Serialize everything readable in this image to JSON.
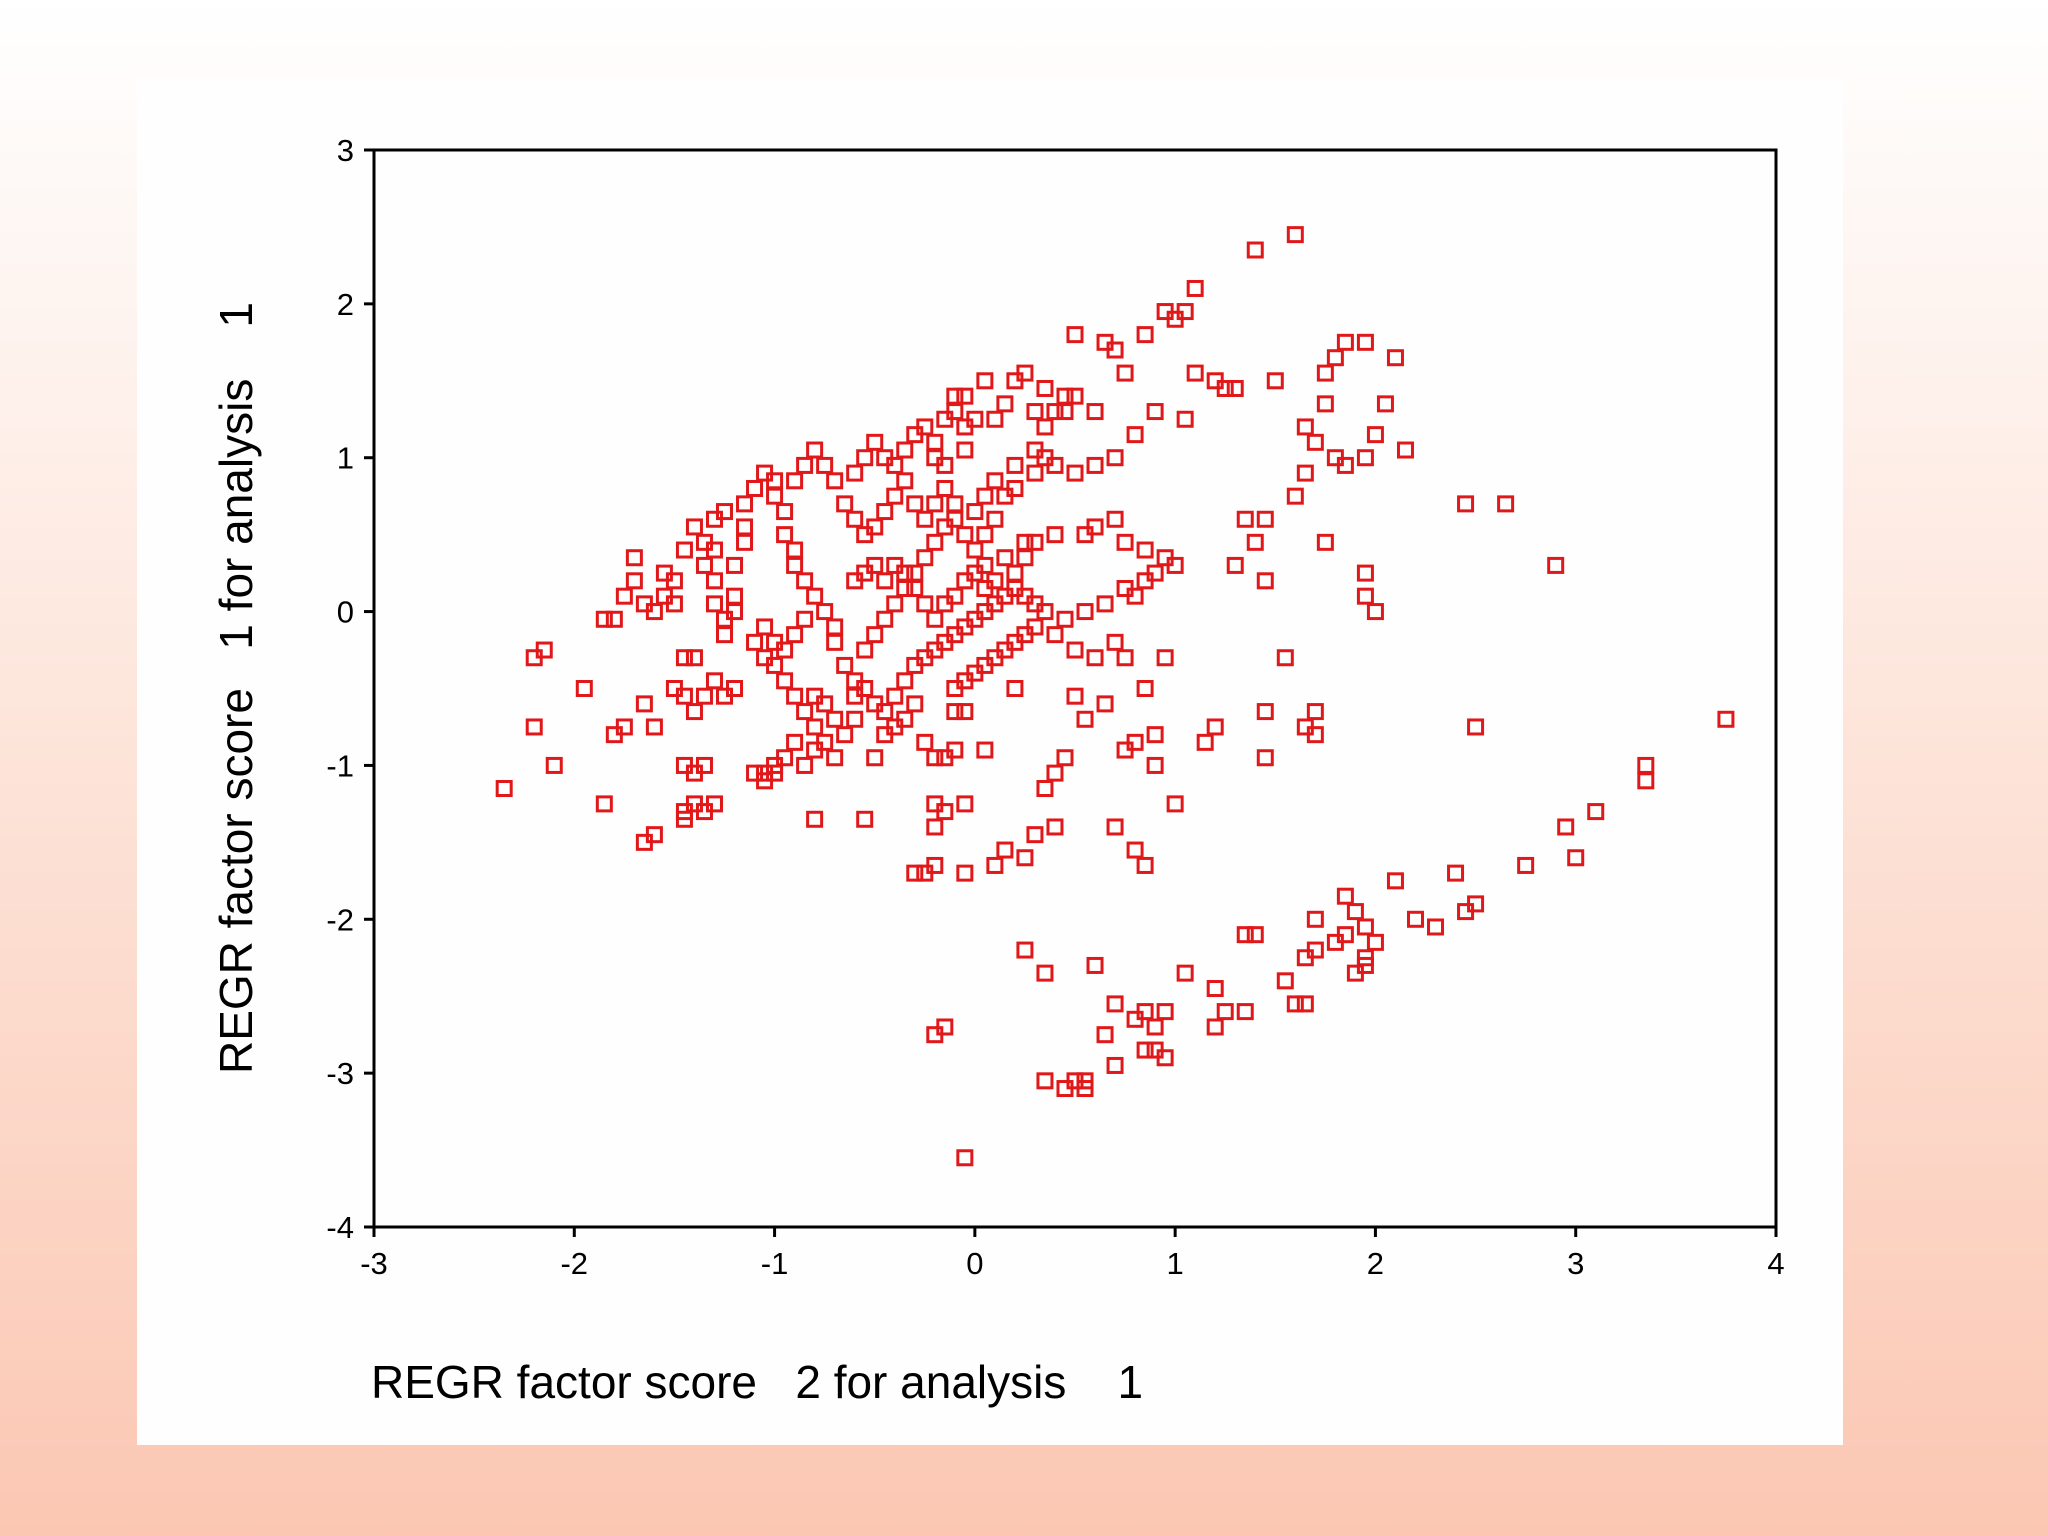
{
  "chart_data": {
    "type": "scatter",
    "xlabel": "REGR factor score   2 for analysis    1",
    "ylabel": "REGR factor score   1 for analysis    1",
    "xlim": [
      -3,
      4
    ],
    "ylim": [
      -4,
      3
    ],
    "xticks": [
      "-3",
      "-2",
      "-1",
      "0",
      "1",
      "2",
      "3",
      "4"
    ],
    "yticks": [
      "3",
      "2",
      "1",
      "0",
      "-1",
      "-2",
      "-3",
      "-4"
    ],
    "marker": "hollow-square",
    "color": "#e0181a",
    "grid": false,
    "points": [
      [
        1.6,
        2.45
      ],
      [
        1.4,
        2.35
      ],
      [
        1.1,
        2.1
      ],
      [
        0.95,
        1.95
      ],
      [
        1.05,
        1.95
      ],
      [
        1.0,
        1.9
      ],
      [
        0.5,
        1.8
      ],
      [
        0.85,
        1.8
      ],
      [
        0.65,
        1.75
      ],
      [
        0.7,
        1.7
      ],
      [
        0.75,
        1.55
      ],
      [
        1.85,
        1.75
      ],
      [
        1.8,
        1.65
      ],
      [
        1.95,
        1.75
      ],
      [
        2.1,
        1.65
      ],
      [
        1.75,
        1.55
      ],
      [
        1.5,
        1.5
      ],
      [
        1.25,
        1.45
      ],
      [
        1.3,
        1.45
      ],
      [
        1.2,
        1.5
      ],
      [
        1.1,
        1.55
      ],
      [
        1.75,
        1.35
      ],
      [
        1.65,
        1.2
      ],
      [
        2.05,
        1.35
      ],
      [
        2.0,
        1.15
      ],
      [
        2.15,
        1.05
      ],
      [
        1.95,
        1.0
      ],
      [
        1.85,
        0.95
      ],
      [
        1.8,
        1.0
      ],
      [
        1.7,
        1.1
      ],
      [
        1.65,
        0.9
      ],
      [
        1.6,
        0.75
      ],
      [
        2.45,
        0.7
      ],
      [
        2.65,
        0.7
      ],
      [
        2.9,
        0.3
      ],
      [
        1.75,
        0.45
      ],
      [
        1.95,
        0.25
      ],
      [
        1.95,
        0.1
      ],
      [
        2.0,
        0.0
      ],
      [
        1.45,
        0.6
      ],
      [
        1.35,
        0.6
      ],
      [
        1.4,
        0.45
      ],
      [
        1.3,
        0.3
      ],
      [
        1.45,
        0.2
      ],
      [
        0.05,
        1.5
      ],
      [
        0.25,
        1.55
      ],
      [
        0.35,
        1.45
      ],
      [
        0.45,
        1.4
      ],
      [
        0.5,
        1.4
      ],
      [
        -0.05,
        1.4
      ],
      [
        -0.1,
        1.4
      ],
      [
        0.2,
        1.5
      ],
      [
        0.15,
        1.35
      ],
      [
        0.45,
        1.3
      ],
      [
        0.6,
        1.3
      ],
      [
        0.9,
        1.3
      ],
      [
        1.05,
        1.25
      ],
      [
        0.8,
        1.15
      ],
      [
        0.7,
        1.0
      ],
      [
        0.6,
        0.95
      ],
      [
        0.5,
        0.9
      ],
      [
        0.4,
        0.95
      ],
      [
        0.35,
        1.0
      ],
      [
        0.3,
        0.9
      ],
      [
        0.2,
        0.8
      ],
      [
        0.15,
        0.75
      ],
      [
        0.1,
        0.6
      ],
      [
        0.05,
        0.5
      ],
      [
        0.25,
        0.45
      ],
      [
        0.4,
        0.5
      ],
      [
        0.55,
        0.5
      ],
      [
        0.6,
        0.55
      ],
      [
        0.7,
        0.6
      ],
      [
        0.75,
        0.45
      ],
      [
        0.85,
        0.4
      ],
      [
        0.95,
        0.35
      ],
      [
        1.0,
        0.3
      ],
      [
        0.9,
        0.25
      ],
      [
        0.85,
        0.2
      ],
      [
        0.75,
        0.15
      ],
      [
        0.8,
        0.1
      ],
      [
        0.65,
        0.05
      ],
      [
        0.55,
        0.0
      ],
      [
        0.45,
        -0.05
      ],
      [
        0.4,
        -0.15
      ],
      [
        0.5,
        -0.25
      ],
      [
        0.6,
        -0.3
      ],
      [
        0.7,
        -0.2
      ],
      [
        0.75,
        -0.3
      ],
      [
        0.95,
        -0.3
      ],
      [
        0.85,
        -0.5
      ],
      [
        0.65,
        -0.6
      ],
      [
        0.5,
        -0.55
      ],
      [
        0.55,
        -0.7
      ],
      [
        0.8,
        -0.85
      ],
      [
        0.9,
        -0.8
      ],
      [
        0.9,
        -1.0
      ],
      [
        1.0,
        -1.25
      ],
      [
        0.75,
        -0.9
      ],
      [
        0.7,
        -1.4
      ],
      [
        0.8,
        -1.55
      ],
      [
        0.85,
        -1.65
      ],
      [
        0.45,
        -0.95
      ],
      [
        0.4,
        -1.05
      ],
      [
        0.35,
        -1.15
      ],
      [
        0.4,
        -1.4
      ],
      [
        0.3,
        -1.45
      ],
      [
        0.25,
        -1.6
      ],
      [
        0.2,
        -0.5
      ],
      [
        0.05,
        -0.9
      ],
      [
        -0.05,
        -1.25
      ],
      [
        0.1,
        -1.65
      ],
      [
        0.15,
        -1.55
      ],
      [
        -0.05,
        -1.7
      ],
      [
        -0.2,
        -1.65
      ],
      [
        -0.25,
        -1.7
      ],
      [
        -0.3,
        -1.7
      ],
      [
        -0.2,
        -1.4
      ],
      [
        -0.15,
        -1.3
      ],
      [
        -0.2,
        -1.25
      ],
      [
        -0.15,
        -0.95
      ],
      [
        -0.1,
        -0.9
      ],
      [
        -0.05,
        -0.65
      ],
      [
        -0.1,
        -0.65
      ],
      [
        1.2,
        -0.75
      ],
      [
        1.15,
        -0.85
      ],
      [
        1.45,
        -0.65
      ],
      [
        1.45,
        -0.95
      ],
      [
        1.65,
        -0.75
      ],
      [
        1.7,
        -0.65
      ],
      [
        1.7,
        -0.8
      ],
      [
        1.55,
        -0.3
      ],
      [
        2.5,
        -0.75
      ],
      [
        3.75,
        -0.7
      ],
      [
        3.35,
        -1.0
      ],
      [
        3.35,
        -1.1
      ],
      [
        3.1,
        -1.3
      ],
      [
        2.95,
        -1.4
      ],
      [
        3.0,
        -1.6
      ],
      [
        2.75,
        -1.65
      ],
      [
        2.4,
        -1.7
      ],
      [
        2.5,
        -1.9
      ],
      [
        2.45,
        -1.95
      ],
      [
        2.3,
        -2.05
      ],
      [
        2.2,
        -2.0
      ],
      [
        2.1,
        -1.75
      ],
      [
        2.0,
        -2.15
      ],
      [
        1.95,
        -2.05
      ],
      [
        1.9,
        -1.95
      ],
      [
        1.85,
        -1.85
      ],
      [
        1.85,
        -2.1
      ],
      [
        1.8,
        -2.15
      ],
      [
        1.95,
        -2.25
      ],
      [
        1.9,
        -2.35
      ],
      [
        1.95,
        -2.3
      ],
      [
        1.7,
        -2.2
      ],
      [
        1.65,
        -2.25
      ],
      [
        1.7,
        -2.0
      ],
      [
        1.55,
        -2.4
      ],
      [
        1.65,
        -2.55
      ],
      [
        1.6,
        -2.55
      ],
      [
        1.4,
        -2.1
      ],
      [
        1.35,
        -2.1
      ],
      [
        1.35,
        -2.6
      ],
      [
        1.2,
        -2.45
      ],
      [
        1.25,
        -2.6
      ],
      [
        1.2,
        -2.7
      ],
      [
        1.05,
        -2.35
      ],
      [
        0.95,
        -2.6
      ],
      [
        0.9,
        -2.7
      ],
      [
        0.85,
        -2.6
      ],
      [
        0.8,
        -2.65
      ],
      [
        0.9,
        -2.85
      ],
      [
        0.95,
        -2.9
      ],
      [
        0.85,
        -2.85
      ],
      [
        0.7,
        -2.55
      ],
      [
        0.65,
        -2.75
      ],
      [
        0.7,
        -2.95
      ],
      [
        0.6,
        -2.3
      ],
      [
        0.35,
        -2.35
      ],
      [
        0.25,
        -2.2
      ],
      [
        0.35,
        -3.05
      ],
      [
        0.45,
        -3.1
      ],
      [
        0.5,
        -3.05
      ],
      [
        0.55,
        -3.05
      ],
      [
        0.55,
        -3.1
      ],
      [
        -0.05,
        -3.55
      ],
      [
        -0.2,
        -2.75
      ],
      [
        -0.15,
        -2.7
      ],
      [
        -2.35,
        -1.15
      ],
      [
        -2.2,
        -0.75
      ],
      [
        -2.1,
        -1.0
      ],
      [
        -2.2,
        -0.3
      ],
      [
        -2.15,
        -0.25
      ],
      [
        -1.95,
        -0.5
      ],
      [
        -1.85,
        -1.25
      ],
      [
        -1.75,
        -0.75
      ],
      [
        -1.8,
        -0.8
      ],
      [
        -1.65,
        -0.6
      ],
      [
        -1.6,
        -0.75
      ],
      [
        -1.65,
        -1.5
      ],
      [
        -1.6,
        -1.45
      ],
      [
        -1.45,
        -1.35
      ],
      [
        -1.45,
        -1.3
      ],
      [
        -1.4,
        -1.25
      ],
      [
        -1.35,
        -1.3
      ],
      [
        -1.3,
        -1.25
      ],
      [
        -1.35,
        -1.0
      ],
      [
        -1.4,
        -1.05
      ],
      [
        -1.45,
        -1.0
      ],
      [
        -1.5,
        -0.5
      ],
      [
        -1.45,
        -0.55
      ],
      [
        -1.4,
        -0.65
      ],
      [
        -1.35,
        -0.55
      ],
      [
        -1.3,
        -0.45
      ],
      [
        -1.25,
        -0.55
      ],
      [
        -1.2,
        -0.5
      ],
      [
        -1.1,
        -1.05
      ],
      [
        -1.05,
        -1.1
      ],
      [
        -1.05,
        -1.05
      ],
      [
        -1.0,
        -1.05
      ],
      [
        -1.0,
        -1.0
      ],
      [
        -0.95,
        -0.95
      ],
      [
        -0.9,
        -0.85
      ],
      [
        -0.85,
        -1.0
      ],
      [
        -0.8,
        -1.35
      ],
      [
        -0.8,
        -0.9
      ],
      [
        -0.75,
        -0.85
      ],
      [
        -0.7,
        -0.95
      ],
      [
        -0.6,
        -0.7
      ],
      [
        -0.55,
        -1.35
      ],
      [
        -0.5,
        -0.95
      ],
      [
        -0.45,
        -0.8
      ],
      [
        -0.4,
        -0.75
      ],
      [
        -0.35,
        -0.7
      ],
      [
        -0.3,
        -0.6
      ],
      [
        -0.25,
        -0.85
      ],
      [
        -0.2,
        -0.95
      ],
      [
        -1.85,
        -0.05
      ],
      [
        -1.8,
        -0.05
      ],
      [
        -1.75,
        0.1
      ],
      [
        -1.7,
        0.35
      ],
      [
        -1.7,
        0.2
      ],
      [
        -1.65,
        0.05
      ],
      [
        -1.6,
        0.0
      ],
      [
        -1.55,
        0.1
      ],
      [
        -1.55,
        0.25
      ],
      [
        -1.5,
        0.2
      ],
      [
        -1.5,
        0.05
      ],
      [
        -1.45,
        -0.3
      ],
      [
        -1.4,
        -0.3
      ],
      [
        -1.45,
        0.4
      ],
      [
        -1.4,
        0.55
      ],
      [
        -1.35,
        0.45
      ],
      [
        -1.3,
        0.4
      ],
      [
        -1.35,
        0.3
      ],
      [
        -1.3,
        0.2
      ],
      [
        -1.3,
        0.05
      ],
      [
        -1.25,
        -0.05
      ],
      [
        -1.25,
        -0.15
      ],
      [
        -1.2,
        0.0
      ],
      [
        -1.2,
        0.1
      ],
      [
        -1.2,
        0.3
      ],
      [
        -1.15,
        0.45
      ],
      [
        -1.15,
        0.55
      ],
      [
        -1.3,
        0.6
      ],
      [
        -1.25,
        0.65
      ],
      [
        -1.15,
        0.7
      ],
      [
        -1.1,
        0.8
      ],
      [
        -1.05,
        0.9
      ],
      [
        -1.0,
        0.85
      ],
      [
        -1.0,
        0.75
      ],
      [
        -0.95,
        0.65
      ],
      [
        -0.95,
        0.5
      ],
      [
        -0.9,
        0.4
      ],
      [
        -0.9,
        0.3
      ],
      [
        -0.85,
        0.2
      ],
      [
        -0.8,
        0.1
      ],
      [
        -0.75,
        0.0
      ],
      [
        -0.7,
        -0.1
      ],
      [
        -0.7,
        -0.2
      ],
      [
        -0.65,
        -0.35
      ],
      [
        -0.6,
        -0.45
      ],
      [
        -0.55,
        -0.5
      ],
      [
        -0.5,
        -0.6
      ],
      [
        -0.45,
        -0.65
      ],
      [
        -0.4,
        -0.55
      ],
      [
        -0.35,
        -0.45
      ],
      [
        -0.3,
        -0.35
      ],
      [
        -0.25,
        -0.3
      ],
      [
        -0.2,
        -0.25
      ],
      [
        -0.15,
        -0.2
      ],
      [
        -0.1,
        -0.15
      ],
      [
        -0.05,
        -0.1
      ],
      [
        0.0,
        -0.05
      ],
      [
        0.05,
        0.0
      ],
      [
        0.1,
        0.05
      ],
      [
        0.15,
        0.1
      ],
      [
        0.2,
        0.15
      ],
      [
        0.25,
        0.1
      ],
      [
        0.3,
        0.05
      ],
      [
        0.35,
        0.0
      ],
      [
        0.3,
        -0.1
      ],
      [
        0.25,
        -0.15
      ],
      [
        0.2,
        -0.2
      ],
      [
        0.15,
        -0.25
      ],
      [
        0.1,
        -0.3
      ],
      [
        0.05,
        -0.35
      ],
      [
        0.0,
        -0.4
      ],
      [
        -0.05,
        -0.45
      ],
      [
        -0.1,
        -0.5
      ],
      [
        -1.1,
        -0.2
      ],
      [
        -1.05,
        -0.3
      ],
      [
        -1.05,
        -0.1
      ],
      [
        -1.0,
        -0.2
      ],
      [
        -1.0,
        -0.35
      ],
      [
        -0.95,
        -0.45
      ],
      [
        -0.95,
        -0.25
      ],
      [
        -0.9,
        -0.15
      ],
      [
        -0.85,
        -0.05
      ],
      [
        -0.9,
        -0.55
      ],
      [
        -0.85,
        -0.65
      ],
      [
        -0.8,
        -0.55
      ],
      [
        -0.8,
        -0.75
      ],
      [
        -0.75,
        -0.6
      ],
      [
        -0.7,
        -0.7
      ],
      [
        -0.65,
        -0.8
      ],
      [
        -0.6,
        -0.55
      ],
      [
        -0.55,
        -0.25
      ],
      [
        -0.5,
        -0.15
      ],
      [
        -0.45,
        -0.05
      ],
      [
        -0.4,
        0.05
      ],
      [
        -0.35,
        0.15
      ],
      [
        -0.3,
        0.25
      ],
      [
        -0.25,
        0.35
      ],
      [
        -0.2,
        0.45
      ],
      [
        -0.15,
        0.55
      ],
      [
        -0.1,
        0.6
      ],
      [
        -0.05,
        0.5
      ],
      [
        0.0,
        0.4
      ],
      [
        0.05,
        0.3
      ],
      [
        0.1,
        0.2
      ],
      [
        0.15,
        0.35
      ],
      [
        0.2,
        0.25
      ],
      [
        0.25,
        0.35
      ],
      [
        0.3,
        0.45
      ],
      [
        -0.6,
        0.2
      ],
      [
        -0.55,
        0.25
      ],
      [
        -0.5,
        0.3
      ],
      [
        -0.45,
        0.2
      ],
      [
        -0.4,
        0.3
      ],
      [
        -0.35,
        0.25
      ],
      [
        -0.3,
        0.15
      ],
      [
        -0.25,
        0.05
      ],
      [
        -0.2,
        -0.05
      ],
      [
        -0.15,
        0.05
      ],
      [
        -0.1,
        0.1
      ],
      [
        -0.05,
        0.2
      ],
      [
        0.0,
        0.25
      ],
      [
        0.05,
        0.15
      ],
      [
        -0.6,
        0.9
      ],
      [
        -0.55,
        1.0
      ],
      [
        -0.5,
        1.1
      ],
      [
        -0.45,
        1.0
      ],
      [
        -0.4,
        0.95
      ],
      [
        -0.35,
        1.05
      ],
      [
        -0.3,
        1.15
      ],
      [
        -0.25,
        1.2
      ],
      [
        -0.2,
        1.1
      ],
      [
        -0.15,
        1.25
      ],
      [
        -0.1,
        1.3
      ],
      [
        -0.05,
        1.2
      ],
      [
        0.0,
        1.25
      ],
      [
        0.1,
        1.25
      ],
      [
        -0.2,
        1.0
      ],
      [
        -0.15,
        0.95
      ],
      [
        -0.05,
        1.05
      ],
      [
        -0.7,
        0.85
      ],
      [
        -0.75,
        0.95
      ],
      [
        -0.8,
        1.05
      ],
      [
        -0.85,
        0.95
      ],
      [
        -0.9,
        0.85
      ],
      [
        -0.65,
        0.7
      ],
      [
        -0.6,
        0.6
      ],
      [
        -0.55,
        0.5
      ],
      [
        -0.5,
        0.55
      ],
      [
        -0.45,
        0.65
      ],
      [
        -0.4,
        0.75
      ],
      [
        -0.35,
        0.85
      ],
      [
        -0.3,
        0.7
      ],
      [
        -0.25,
        0.6
      ],
      [
        -0.2,
        0.7
      ],
      [
        -0.15,
        0.8
      ],
      [
        -0.1,
        0.7
      ],
      [
        0.0,
        0.65
      ],
      [
        0.05,
        0.75
      ],
      [
        0.1,
        0.85
      ],
      [
        0.2,
        0.95
      ],
      [
        0.3,
        1.05
      ],
      [
        0.35,
        1.2
      ],
      [
        0.4,
        1.3
      ],
      [
        0.3,
        1.3
      ]
    ]
  }
}
